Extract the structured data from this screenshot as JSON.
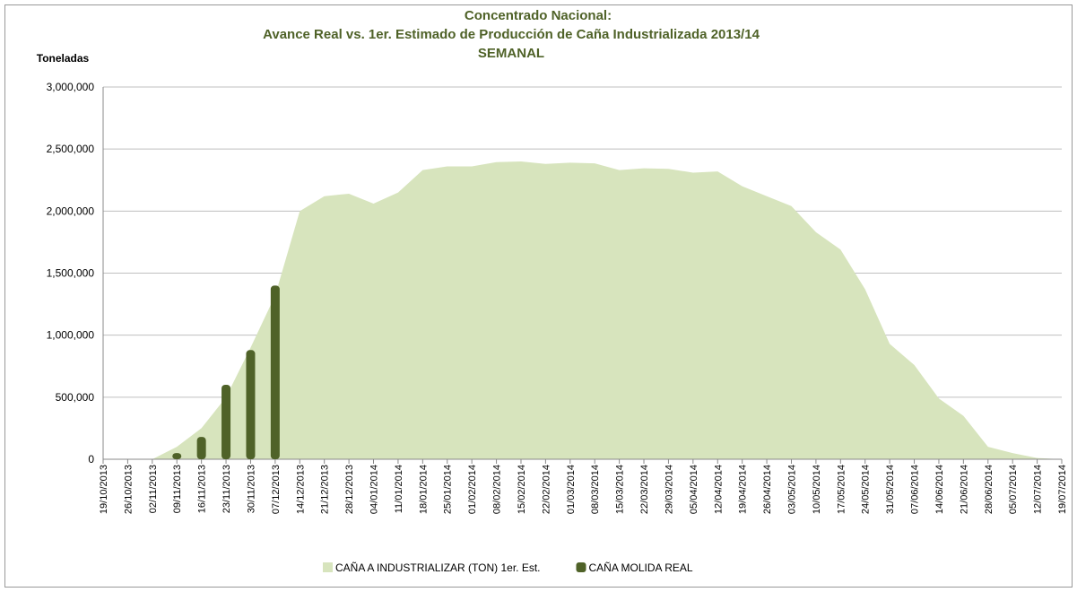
{
  "chart_data": {
    "type": "area_bar",
    "title": [
      "Concentrado Nacional:",
      "Avance Real vs. 1er. Estimado de Producción de Caña Industrializada 2013/14",
      "SEMANAL"
    ],
    "y_label": "Toneladas",
    "categories": [
      "19/10/2013",
      "26/10/2013",
      "02/11/2013",
      "09/11/2013",
      "16/11/2013",
      "23/11/2013",
      "30/11/2013",
      "07/12/2013",
      "14/12/2013",
      "21/12/2013",
      "28/12/2013",
      "04/01/2014",
      "11/01/2014",
      "18/01/2014",
      "25/01/2014",
      "01/02/2014",
      "08/02/2014",
      "15/02/2014",
      "22/02/2014",
      "01/03/2014",
      "08/03/2014",
      "15/03/2014",
      "22/03/2014",
      "29/03/2014",
      "05/04/2014",
      "12/04/2014",
      "19/04/2014",
      "26/04/2014",
      "03/05/2014",
      "10/05/2014",
      "17/05/2014",
      "24/05/2014",
      "31/05/2014",
      "07/06/2014",
      "14/06/2014",
      "21/06/2014",
      "28/06/2014",
      "05/07/2014",
      "12/07/2014",
      "19/07/2014"
    ],
    "series": [
      {
        "name": "CAÑA A INDUSTRIALIZAR (TON) 1er. Est.",
        "color": "#d7e4bd",
        "kind": "area",
        "values": [
          0,
          0,
          0,
          100000,
          250000,
          500000,
          900000,
          1320000,
          2000000,
          2120000,
          2140000,
          2060000,
          2150000,
          2330000,
          2360000,
          2360000,
          2395000,
          2400000,
          2380000,
          2390000,
          2385000,
          2330000,
          2345000,
          2340000,
          2310000,
          2320000,
          2200000,
          2120000,
          2040000,
          1830000,
          1690000,
          1370000,
          930000,
          760000,
          490000,
          350000,
          100000,
          50000,
          10000,
          0
        ]
      },
      {
        "name": "CAÑA MOLIDA REAL",
        "color": "#4f6228",
        "kind": "bar",
        "values": [
          null,
          null,
          null,
          50000,
          180000,
          600000,
          880000,
          1400000,
          null,
          null,
          null,
          null,
          null,
          null,
          null,
          null,
          null,
          null,
          null,
          null,
          null,
          null,
          null,
          null,
          null,
          null,
          null,
          null,
          null,
          null,
          null,
          null,
          null,
          null,
          null,
          null,
          null,
          null,
          null,
          null
        ]
      }
    ],
    "ylim": [
      0,
      3000000
    ],
    "yticks": [
      0,
      {
        "value": 500000,
        "label": "500,000"
      },
      {
        "value": 1000000,
        "label": "1,000,000"
      },
      {
        "value": 1500000,
        "label": "1,500,000"
      },
      {
        "value": 2000000,
        "label": "2,000,000"
      },
      {
        "value": 2500000,
        "label": "2,500,000"
      },
      {
        "value": 3000000,
        "label": "3,000,000"
      }
    ],
    "grid": true
  }
}
